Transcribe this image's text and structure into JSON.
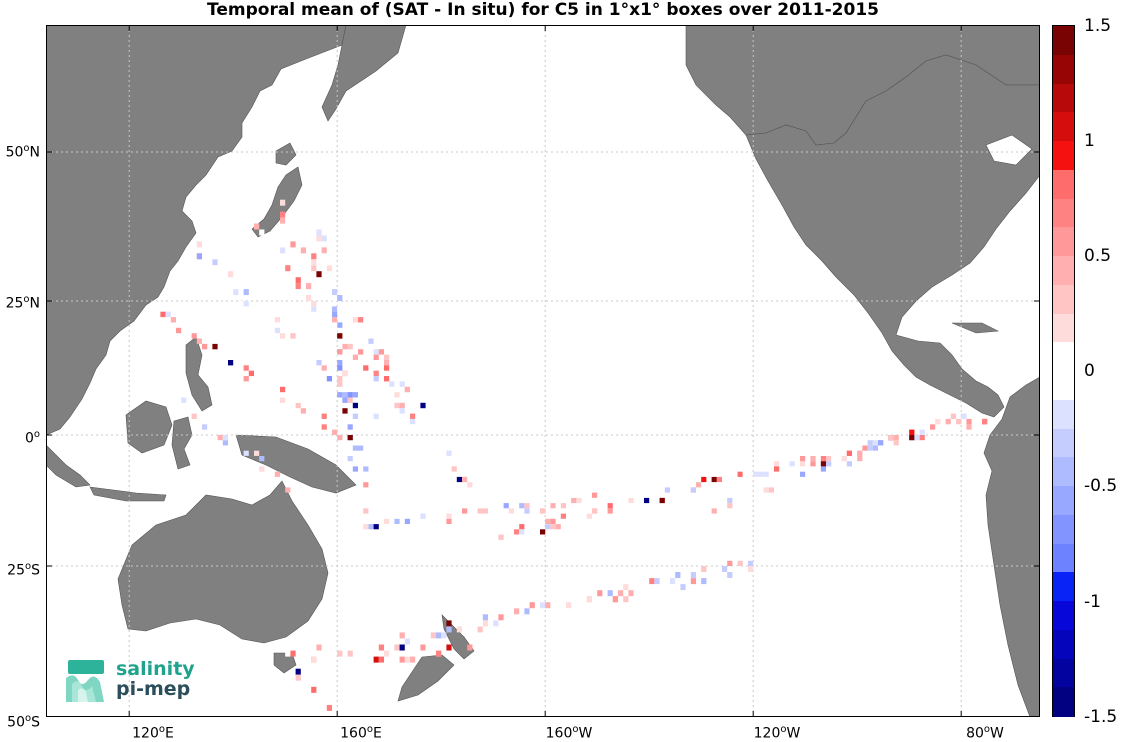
{
  "title": "Temporal mean of (SAT - In situ) for C5 in 1°x1° boxes over 2011-2015",
  "lat_labels": [
    {
      "label": "50",
      "hemi": "N",
      "value": 50
    },
    {
      "label": "25",
      "hemi": "N",
      "value": 25
    },
    {
      "label": "0",
      "hemi": "",
      "value": 0
    },
    {
      "label": "25",
      "hemi": "S",
      "value": -25
    },
    {
      "label": "50",
      "hemi": "S",
      "value": -50
    }
  ],
  "lon_labels": [
    {
      "label": "120",
      "hemi": "E",
      "value": 120
    },
    {
      "label": "160",
      "hemi": "E",
      "value": 160
    },
    {
      "label": "160",
      "hemi": "W",
      "value": 200
    },
    {
      "label": "120",
      "hemi": "W",
      "value": 240
    },
    {
      "label": "80",
      "hemi": "W",
      "value": 280
    }
  ],
  "colorbar": {
    "ticks": [
      "1.5",
      "1",
      "0.5",
      "0",
      "-0.5",
      "-1",
      "-1.5"
    ],
    "tick_values": [
      1.5,
      1,
      0.5,
      0,
      -0.5,
      -1,
      -1.5
    ],
    "range": [
      -1.5,
      1.5
    ],
    "steps": 24
  },
  "logo": {
    "line1": "salinity",
    "line2": "pi-mep"
  },
  "colors": {
    "land": "#808080",
    "ocean": "#ffffff",
    "grid": "#c8c8c8",
    "pos_max": "#67000d",
    "neg_max": "#08086b"
  },
  "chart_data": {
    "type": "heatmap",
    "title": "Temporal mean of (SAT - In situ) for C5 in 1°x1° boxes over 2011-2015",
    "xlabel": "",
    "ylabel": "",
    "lon_range": [
      104,
      296
    ],
    "lat_range": [
      -50,
      66
    ],
    "value_range": [
      -1.5,
      1.5
    ],
    "grid": true,
    "colorbar": "right",
    "tracks": [
      {
        "name": "",
        "from": [
          144,
          37
        ],
        "to": [
          185,
          -10
        ],
        "mean": 0.25
      },
      {
        "name": "",
        "from": [
          156,
          38
        ],
        "to": [
          165,
          -15
        ],
        "mean": -0.05
      },
      {
        "name": "",
        "from": [
          148,
          40
        ],
        "to": [
          175,
          5
        ],
        "mean": 0.2
      },
      {
        "name": "",
        "from": [
          132,
          33
        ],
        "to": [
          167,
          3
        ],
        "mean": -0.15
      },
      {
        "name": "",
        "from": [
          126,
          22
        ],
        "to": [
          160,
          0
        ],
        "mean": 0.3
      },
      {
        "name": "",
        "from": [
          130,
          5
        ],
        "to": [
          150,
          -10
        ],
        "mean": 0.1
      },
      {
        "name": "",
        "from": [
          165,
          -18
        ],
        "to": [
          210,
          -13
        ],
        "mean": 0.05
      },
      {
        "name": "",
        "from": [
          190,
          -20
        ],
        "to": [
          285,
          3
        ],
        "mean": 0.3
      },
      {
        "name": "",
        "from": [
          230,
          -15
        ],
        "to": [
          280,
          3
        ],
        "mean": -0.05
      },
      {
        "name": "",
        "from": [
          170,
          -38
        ],
        "to": [
          240,
          -25
        ],
        "mean": 0.1
      },
      {
        "name": "",
        "from": [
          150,
          -40
        ],
        "to": [
          185,
          -40
        ],
        "mean": 0.5
      },
      {
        "name": "",
        "from": [
          148,
          -42
        ],
        "to": [
          158,
          -49
        ],
        "mean": 0.4
      }
    ]
  }
}
